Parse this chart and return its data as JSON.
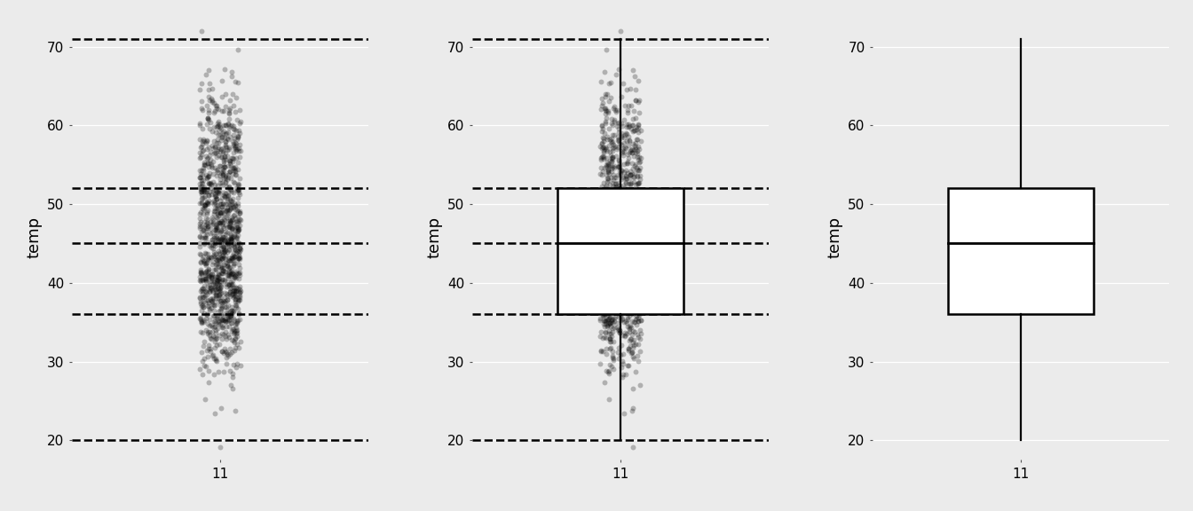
{
  "panel_bg": "#ebebeb",
  "fig_bg": "#ebebeb",
  "ylabel": "temp",
  "xlabel": "11",
  "ylim": [
    17.5,
    74
  ],
  "yticks": [
    20,
    30,
    40,
    50,
    60,
    70
  ],
  "grid_color": "#ffffff",
  "boxplot_median": 45,
  "boxplot_q1": 36,
  "boxplot_q3": 52,
  "boxplot_whisker_low": 20,
  "boxplot_whisker_high": 71,
  "dashed_lines": [
    71,
    52,
    45,
    36,
    20
  ],
  "dashed_color": "#000000",
  "box_width": 0.55,
  "dot_alpha": 0.25,
  "dot_size": 18,
  "dot_color": "#000000",
  "n_points": 1200,
  "seed": 42,
  "tick_label_color": "#000000",
  "ylabel_color": "#000000",
  "ylabel_fontsize": 13,
  "tick_fontsize": 11
}
